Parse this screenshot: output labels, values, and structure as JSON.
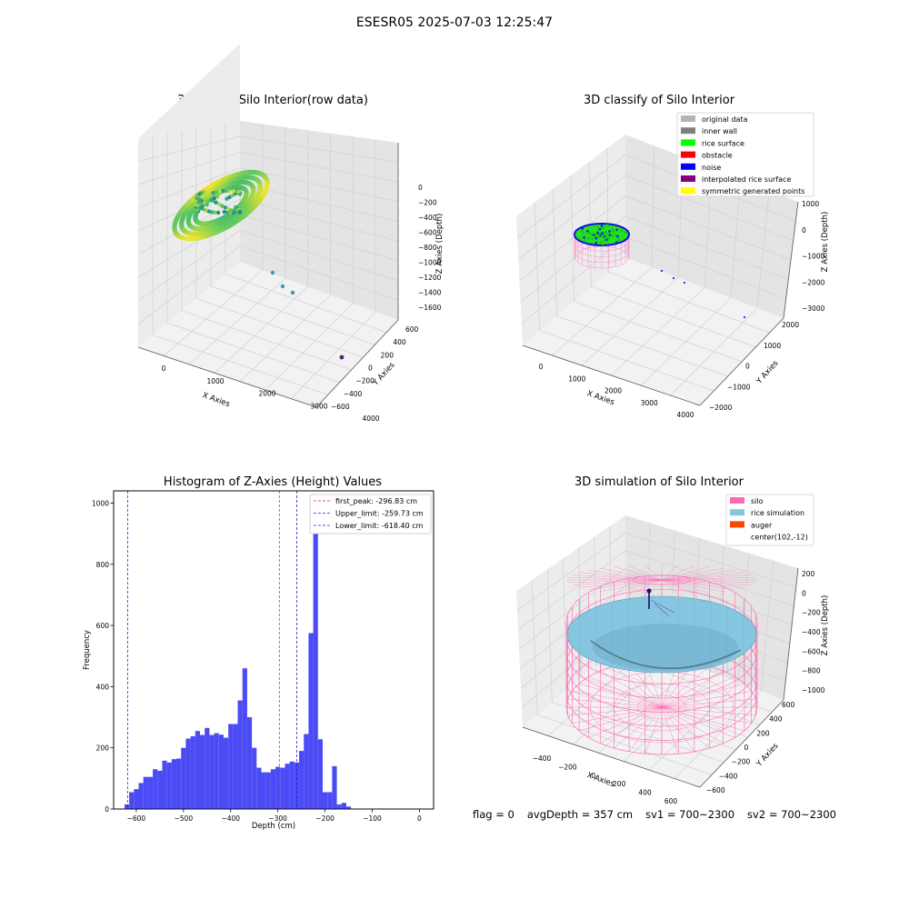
{
  "suptitle": "ESESR05 2025-07-03 12:25:47",
  "footer": {
    "flag": "flag = 0",
    "avg_depth": "avgDepth = 357 cm",
    "sv1": "sv1 = 700~2300",
    "sv2": "sv2 = 700~2300"
  },
  "colors": {
    "hist_bar": "#4b4bf5",
    "first_peak_line": "#e53030",
    "limit_line": "#2323c8",
    "silo": "#ff69b4",
    "rice_simulation": "#87c6e0",
    "auger": "#ff4500"
  },
  "chart_data": [
    {
      "type": "scatter",
      "title": "3D Plot of Silo Interior(row data)",
      "xlabel": "X Axies",
      "ylabel": "Y Axies",
      "zlabel": "Z Axies (Depth)",
      "x_ticks": [
        "0",
        "1000",
        "2000",
        "3000",
        "4000"
      ],
      "y_ticks": [
        "−600",
        "−400",
        "−200",
        "0",
        "200",
        "400",
        "600"
      ],
      "z_ticks": [
        "0",
        "−200",
        "−400",
        "−600",
        "−800",
        "−1000",
        "−1200",
        "−1400",
        "−1600"
      ],
      "colormap": "viridis"
    },
    {
      "type": "scatter",
      "title": "3D classify of Silo Interior",
      "xlabel": "X Axies",
      "ylabel": "Y Axies",
      "zlabel": "Z Axies (Depth)",
      "x_ticks": [
        "0",
        "1000",
        "2000",
        "3000",
        "4000"
      ],
      "y_ticks": [
        "−2000",
        "−1000",
        "0",
        "1000",
        "2000"
      ],
      "z_ticks": [
        "1000",
        "0",
        "−1000",
        "−2000",
        "−3000"
      ],
      "legend": [
        {
          "label": "original data",
          "color": "#b4b4b4"
        },
        {
          "label": "inner wall",
          "color": "#808080"
        },
        {
          "label": "rice surface",
          "color": "#00ff00"
        },
        {
          "label": "obstacle",
          "color": "#ff0000"
        },
        {
          "label": "noise",
          "color": "#0000ff"
        },
        {
          "label": "interpolated rice surface",
          "color": "#800080"
        },
        {
          "label": "symmetric generated points",
          "color": "#ffff00"
        }
      ],
      "legend_loc": "upper right"
    },
    {
      "type": "bar",
      "title": "Histogram of Z-Axies (Height) Values",
      "xlabel": "Depth (cm)",
      "ylabel": "Frequency",
      "xlim": [
        -648,
        30
      ],
      "ylim": [
        0,
        1040
      ],
      "x_ticks": [
        -600,
        -500,
        -400,
        -300,
        -200,
        -100,
        0
      ],
      "y_ticks": [
        0,
        200,
        400,
        600,
        800,
        1000
      ],
      "bin_start": -625,
      "bin_width": 10,
      "values": [
        15,
        55,
        65,
        85,
        105,
        105,
        130,
        125,
        158,
        152,
        163,
        165,
        200,
        230,
        238,
        255,
        242,
        265,
        242,
        248,
        243,
        233,
        278,
        278,
        355,
        460,
        300,
        200,
        135,
        120,
        120,
        130,
        138,
        135,
        148,
        155,
        152,
        190,
        245,
        575,
        985,
        228,
        55,
        55,
        140,
        15,
        20,
        8
      ],
      "vlines": [
        {
          "label": "first_peak: -296.83 cm",
          "x": -296.83,
          "kind": "first_peak"
        },
        {
          "label": "Upper_limit: -259.73 cm",
          "x": -259.73,
          "kind": "limit"
        },
        {
          "label": "Lower_limit: -618.40 cm",
          "x": -618.4,
          "kind": "limit"
        }
      ],
      "legend_loc": "upper right"
    },
    {
      "type": "scatter",
      "title": "3D simulation of Silo Interior",
      "xlabel": "X Axies",
      "ylabel": "Y Axies",
      "zlabel": "Z Axies (Depth)",
      "x_ticks": [
        "−400",
        "−200",
        "0",
        "200",
        "400",
        "600"
      ],
      "y_ticks": [
        "−600",
        "−400",
        "−200",
        "0",
        "200",
        "400",
        "600"
      ],
      "z_ticks": [
        "200",
        "0",
        "−200",
        "−400",
        "−600",
        "−800",
        "−1000"
      ],
      "legend": [
        {
          "label": "silo",
          "color": "#ff69b4"
        },
        {
          "label": "rice simulation",
          "color": "#87c6e0"
        },
        {
          "label": "auger",
          "color": "#ff4500"
        },
        {
          "label": "center(102,-12)",
          "color": ""
        }
      ],
      "legend_loc": "upper right"
    }
  ]
}
